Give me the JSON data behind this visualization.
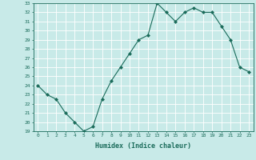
{
  "x": [
    0,
    1,
    2,
    3,
    4,
    5,
    6,
    7,
    8,
    9,
    10,
    11,
    12,
    13,
    14,
    15,
    16,
    17,
    18,
    19,
    20,
    21,
    22,
    23
  ],
  "y": [
    24.0,
    23.0,
    22.5,
    21.0,
    20.0,
    19.0,
    19.5,
    22.5,
    24.5,
    26.0,
    27.5,
    29.0,
    29.5,
    33.0,
    32.0,
    31.0,
    32.0,
    32.5,
    32.0,
    32.0,
    30.5,
    29.0,
    26.0,
    25.5
  ],
  "xlabel": "Humidex (Indice chaleur)",
  "ylim": [
    19,
    33
  ],
  "xlim": [
    -0.5,
    23.5
  ],
  "yticks": [
    19,
    20,
    21,
    22,
    23,
    24,
    25,
    26,
    27,
    28,
    29,
    30,
    31,
    32,
    33
  ],
  "xticks": [
    0,
    1,
    2,
    3,
    4,
    5,
    6,
    7,
    8,
    9,
    10,
    11,
    12,
    13,
    14,
    15,
    16,
    17,
    18,
    19,
    20,
    21,
    22,
    23
  ],
  "line_color": "#1a6b5a",
  "marker": "D",
  "marker_size": 2,
  "bg_color": "#c8eae8",
  "grid_color": "#ffffff",
  "tick_color": "#1a6b5a",
  "label_color": "#1a6b5a",
  "tick_fontsize": 4.5,
  "xlabel_fontsize": 6.0
}
